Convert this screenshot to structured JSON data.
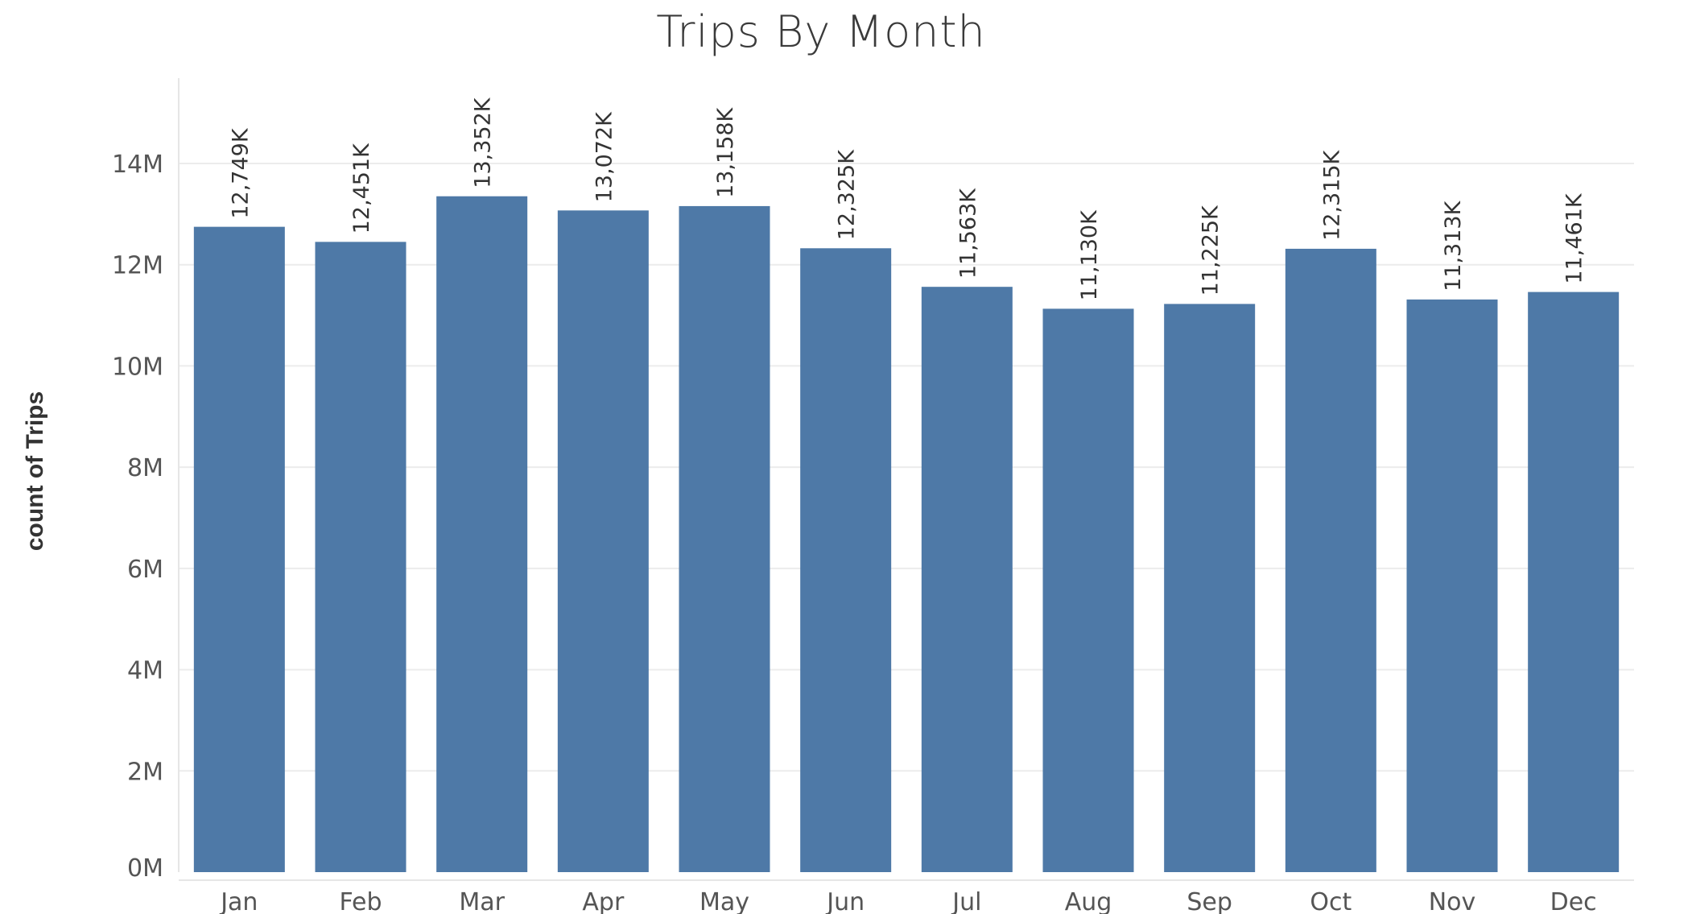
{
  "chart_data": {
    "type": "bar",
    "title": "Trips By Month",
    "xlabel": "",
    "ylabel": "count of Trips",
    "categories": [
      "Jan",
      "Feb",
      "Mar",
      "Apr",
      "May",
      "Jun",
      "Jul",
      "Aug",
      "Sep",
      "Oct",
      "Nov",
      "Dec"
    ],
    "values": [
      12749000,
      12451000,
      13352000,
      13072000,
      13158000,
      12325000,
      11563000,
      11130000,
      11225000,
      12315000,
      11313000,
      11461000
    ],
    "data_labels": [
      "12,749K",
      "12,451K",
      "13,352K",
      "13,072K",
      "13,158K",
      "12,325K",
      "11,563K",
      "11,130K",
      "11,225K",
      "12,315K",
      "11,313K",
      "11,461K"
    ],
    "ylim": [
      0,
      15500000
    ],
    "yticks": [
      0,
      2000000,
      4000000,
      6000000,
      8000000,
      10000000,
      12000000,
      14000000
    ],
    "ytick_labels": [
      "0M",
      "2M",
      "4M",
      "6M",
      "8M",
      "10M",
      "12M",
      "14M"
    ],
    "grid": true,
    "legend": "none",
    "colors": {
      "bar": "#4e79a7",
      "grid": "#ececec",
      "axis_text": "#555555",
      "label_text": "#333333"
    }
  }
}
